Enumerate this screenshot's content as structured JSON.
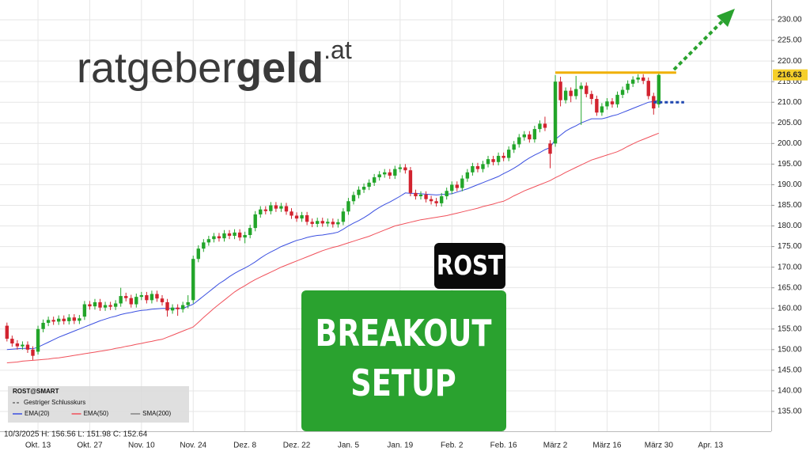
{
  "chart_data": {
    "type": "candlestick",
    "logo": {
      "main": "ratgeber",
      "bold": "geld",
      "suffix": ".at"
    },
    "ticker_badge": "ROST",
    "setup_lines": [
      "BREAKOUT",
      "SETUP"
    ],
    "symbol": "ROST@SMART",
    "legend_extra": [
      "Gestriger Schlusskurs",
      "SMA(200)"
    ],
    "info": "10/3/2025  H: 156.56  L: 151.98  C: 152.64",
    "up_color": "#22a52a",
    "down_color": "#d2232f",
    "categories": [
      null,
      null,
      null,
      null,
      null,
      null,
      "Okt. 13",
      null,
      null,
      null,
      null,
      null,
      null,
      null,
      null,
      null,
      "Okt. 27",
      null,
      null,
      null,
      null,
      null,
      null,
      null,
      null,
      null,
      "Nov. 10",
      null,
      null,
      null,
      null,
      null,
      null,
      null,
      null,
      null,
      "Nov. 24",
      null,
      null,
      null,
      null,
      null,
      null,
      null,
      null,
      null,
      "Dez. 8",
      null,
      null,
      null,
      null,
      null,
      null,
      null,
      null,
      null,
      "Dez. 22",
      null,
      null,
      null,
      null,
      null,
      null,
      null,
      null,
      null,
      "Jan. 5",
      null,
      null,
      null,
      null,
      null,
      null,
      null,
      null,
      null,
      "Jan. 19",
      null,
      null,
      null,
      null,
      null,
      null,
      null,
      null,
      null,
      "Feb. 2",
      null,
      null,
      null,
      null,
      null,
      null,
      null,
      null,
      null,
      "Feb. 16",
      null,
      null,
      null,
      null,
      null,
      null,
      null,
      null,
      null,
      "März 2",
      null,
      null,
      null,
      null,
      null,
      null,
      null,
      null,
      null,
      "März 16",
      null,
      null,
      null,
      null,
      null,
      null,
      null,
      null,
      null,
      "März 30",
      null,
      null,
      null,
      null,
      null,
      null,
      null,
      null,
      null,
      "Apr. 13"
    ],
    "open": [
      155.8,
      152.64,
      151.5,
      150.8,
      151.2,
      150.0,
      149.5,
      155.0,
      156.5,
      157.2,
      156.8,
      157.5,
      156.9,
      157.8,
      157.0,
      158.0,
      161.0,
      160.5,
      161.5,
      160.2,
      160.8,
      160.4,
      161.2,
      163.0,
      162.5,
      161.0,
      162.8,
      163.2,
      162.0,
      163.5,
      162.4,
      161.5,
      159.5,
      160.2,
      159.8,
      160.8,
      162.0,
      172.0,
      174.5,
      176.0,
      176.8,
      177.5,
      177.0,
      178.2,
      177.6,
      178.4,
      177.2,
      177.8,
      179.5,
      182.8,
      184.0,
      183.6,
      185.0,
      184.2,
      184.8,
      183.5,
      182.5,
      181.8,
      182.6,
      181.0,
      180.5,
      181.2,
      180.6,
      181.0,
      180.4,
      181.0,
      183.5,
      186.0,
      187.5,
      188.8,
      189.5,
      190.5,
      191.8,
      192.5,
      193.0,
      192.2,
      193.8,
      194.2,
      193.5,
      188.0,
      187.2,
      187.6,
      186.5,
      186.0,
      185.5,
      187.2,
      188.5,
      190.0,
      189.2,
      191.5,
      193.0,
      194.5,
      193.8,
      195.0,
      196.2,
      195.5,
      197.0,
      196.5,
      198.5,
      199.8,
      201.5,
      202.2,
      201.0,
      203.5,
      204.8,
      200.0,
      200.0,
      215.0,
      210.5,
      212.8,
      211.5,
      213.2,
      214.0,
      212.0,
      210.8,
      207.5,
      209.0,
      210.2,
      209.5,
      211.8,
      213.0,
      214.5,
      215.5,
      216.0,
      215.2,
      211.5,
      209.5,
      null,
      null,
      null,
      null,
      null,
      null,
      null,
      null,
      null,
      null
    ],
    "high": [
      156.56,
      153.4,
      152.3,
      152.0,
      152.0,
      150.8,
      155.8,
      157.3,
      158.0,
      158.0,
      158.3,
      158.3,
      158.6,
      158.6,
      158.4,
      161.8,
      161.8,
      162.3,
      162.3,
      161.6,
      161.6,
      162.0,
      165.0,
      163.8,
      163.3,
      163.6,
      164.0,
      164.0,
      164.3,
      164.3,
      163.2,
      162.3,
      161.0,
      161.0,
      161.6,
      163.2,
      172.8,
      175.3,
      176.8,
      177.6,
      178.3,
      178.3,
      179.0,
      179.0,
      179.2,
      179.2,
      178.6,
      180.3,
      183.6,
      184.8,
      184.8,
      185.8,
      185.8,
      185.6,
      185.6,
      184.3,
      183.3,
      183.4,
      183.4,
      181.8,
      182.0,
      182.0,
      181.8,
      181.8,
      181.7,
      184.3,
      186.8,
      188.3,
      189.6,
      190.3,
      191.3,
      192.6,
      193.3,
      193.8,
      193.8,
      194.6,
      195.0,
      195.0,
      194.3,
      188.8,
      188.4,
      188.4,
      187.3,
      186.8,
      188.0,
      189.3,
      190.8,
      190.8,
      192.3,
      193.8,
      195.3,
      195.3,
      195.8,
      197.0,
      197.0,
      197.8,
      197.8,
      199.3,
      200.6,
      202.3,
      203.0,
      203.0,
      204.3,
      205.6,
      206.5,
      200.8,
      216.6,
      216.2,
      213.6,
      213.6,
      216.4,
      214.8,
      214.8,
      212.8,
      211.6,
      209.8,
      211.0,
      211.0,
      212.6,
      213.8,
      215.3,
      216.3,
      216.8,
      216.8,
      216.0,
      212.3,
      217.0,
      null,
      null,
      null,
      null,
      null,
      null,
      null,
      null,
      null,
      null
    ],
    "low": [
      151.98,
      150.7,
      150.0,
      150.0,
      149.2,
      147.5,
      148.8,
      154.2,
      155.7,
      156.0,
      156.0,
      156.1,
      156.1,
      156.2,
      156.2,
      157.2,
      159.7,
      159.7,
      159.4,
      159.4,
      159.6,
      159.6,
      160.4,
      161.7,
      160.2,
      160.2,
      162.0,
      161.2,
      161.2,
      161.6,
      160.7,
      158.0,
      158.7,
      158.2,
      159.0,
      160.0,
      161.2,
      171.2,
      173.7,
      175.2,
      176.0,
      176.2,
      176.2,
      176.8,
      176.8,
      176.4,
      175.8,
      177.0,
      178.7,
      182.0,
      182.8,
      182.8,
      183.4,
      183.4,
      182.7,
      181.7,
      181.0,
      181.0,
      180.2,
      179.7,
      179.7,
      179.8,
      179.8,
      179.6,
      179.6,
      180.2,
      182.7,
      185.2,
      186.7,
      188.0,
      188.7,
      189.7,
      191.0,
      191.7,
      191.4,
      191.4,
      193.0,
      192.7,
      187.2,
      186.4,
      186.4,
      185.7,
      185.2,
      184.7,
      184.7,
      186.4,
      187.7,
      188.4,
      188.4,
      190.7,
      192.2,
      193.0,
      193.0,
      194.2,
      194.7,
      194.7,
      195.7,
      195.7,
      197.7,
      199.0,
      200.7,
      200.2,
      200.2,
      202.7,
      203.0,
      194.0,
      199.2,
      209.0,
      209.7,
      210.0,
      210.7,
      204.5,
      211.2,
      209.5,
      206.7,
      206.7,
      208.2,
      208.7,
      208.7,
      211.0,
      212.2,
      213.7,
      214.7,
      214.4,
      210.7,
      207.0,
      208.7,
      null,
      null,
      null,
      null,
      null,
      null,
      null,
      null,
      null,
      null
    ],
    "close": [
      152.64,
      151.5,
      150.8,
      151.2,
      150.0,
      148.5,
      155.0,
      156.5,
      157.2,
      156.8,
      157.5,
      156.9,
      157.8,
      157.0,
      157.6,
      161.0,
      160.5,
      161.5,
      160.2,
      160.8,
      160.4,
      161.2,
      163.0,
      162.5,
      161.0,
      162.8,
      163.2,
      162.0,
      163.5,
      162.4,
      161.5,
      159.5,
      160.2,
      159.8,
      160.8,
      161.5,
      172.0,
      174.5,
      176.0,
      176.8,
      177.5,
      177.0,
      178.2,
      177.6,
      178.4,
      177.2,
      177.8,
      179.5,
      182.8,
      184.0,
      183.6,
      185.0,
      184.2,
      184.8,
      183.5,
      182.5,
      181.8,
      182.6,
      181.0,
      180.5,
      181.2,
      180.6,
      181.0,
      180.4,
      180.9,
      183.5,
      186.0,
      187.5,
      188.8,
      189.5,
      190.5,
      191.8,
      192.5,
      193.0,
      192.2,
      193.8,
      194.2,
      193.5,
      188.0,
      187.2,
      187.6,
      186.5,
      186.0,
      185.5,
      187.2,
      188.5,
      190.0,
      189.2,
      191.5,
      193.0,
      194.5,
      193.8,
      195.0,
      196.2,
      195.5,
      197.0,
      196.5,
      198.5,
      199.8,
      201.5,
      202.2,
      201.0,
      203.5,
      204.8,
      203.8,
      197.5,
      215.0,
      210.5,
      212.8,
      211.5,
      213.2,
      214.0,
      212.0,
      210.8,
      207.5,
      209.0,
      210.2,
      209.5,
      211.8,
      213.0,
      214.5,
      215.5,
      216.0,
      215.2,
      211.5,
      208.5,
      216.63,
      null,
      null,
      null,
      null,
      null,
      null,
      null,
      null,
      null,
      null
    ],
    "series": [
      {
        "name": "EMA(20)",
        "color": "#3a4fe0",
        "values": [
          150.0,
          150.1,
          150.2,
          150.3,
          150.3,
          150.2,
          150.6,
          151.2,
          151.8,
          152.4,
          153.0,
          153.5,
          154.0,
          154.5,
          155.0,
          155.5,
          156.0,
          156.5,
          157.0,
          157.4,
          157.8,
          158.1,
          158.5,
          158.8,
          159.0,
          159.3,
          159.5,
          159.6,
          159.8,
          159.9,
          160.0,
          160.0,
          160.0,
          160.0,
          160.0,
          160.5,
          161.0,
          162.0,
          163.0,
          164.0,
          165.0,
          166.0,
          166.8,
          167.7,
          168.5,
          169.2,
          169.8,
          170.5,
          171.3,
          172.2,
          173.0,
          173.7,
          174.3,
          175.0,
          175.5,
          176.0,
          176.5,
          176.8,
          177.2,
          177.5,
          177.7,
          177.8,
          178.0,
          178.2,
          178.5,
          179.2,
          180.0,
          180.7,
          181.3,
          182.0,
          182.8,
          183.7,
          184.5,
          185.2,
          185.8,
          186.5,
          187.2,
          188.0,
          187.9,
          187.9,
          187.8,
          187.7,
          187.6,
          187.5,
          187.6,
          187.7,
          187.8,
          188.2,
          188.6,
          189.0,
          189.5,
          190.0,
          190.5,
          191.0,
          191.5,
          192.0,
          192.7,
          193.3,
          194.0,
          194.8,
          195.7,
          196.5,
          197.2,
          197.8,
          198.5,
          199.0,
          201.0,
          202.0,
          203.0,
          203.7,
          204.3,
          205.0,
          205.5,
          206.0,
          206.0,
          206.0,
          206.3,
          206.7,
          207.0,
          207.5,
          208.0,
          208.5,
          209.0,
          209.5,
          210.0,
          210.2,
          210.5,
          null,
          null,
          null,
          null,
          null,
          null,
          null,
          null,
          null,
          null
        ]
      },
      {
        "name": "EMA(50)",
        "color": "#f0505a",
        "values": [
          146.8,
          146.9,
          147.0,
          147.2,
          147.3,
          147.4,
          147.5,
          147.6,
          147.7,
          147.9,
          148.0,
          148.2,
          148.4,
          148.6,
          148.8,
          149.0,
          149.2,
          149.4,
          149.6,
          149.8,
          150.0,
          150.3,
          150.5,
          150.8,
          151.0,
          151.3,
          151.5,
          151.8,
          152.0,
          152.3,
          152.5,
          153.0,
          153.5,
          154.0,
          154.5,
          155.0,
          155.5,
          156.6,
          157.8,
          158.9,
          160.0,
          161.0,
          162.0,
          163.0,
          164.0,
          164.8,
          165.5,
          166.3,
          167.0,
          167.6,
          168.2,
          168.8,
          169.4,
          170.0,
          170.5,
          171.0,
          171.5,
          172.0,
          172.5,
          173.0,
          173.5,
          174.0,
          174.4,
          174.8,
          175.1,
          175.5,
          175.9,
          176.3,
          176.7,
          177.1,
          177.5,
          178.0,
          178.5,
          179.0,
          179.5,
          180.0,
          180.3,
          180.6,
          180.9,
          181.2,
          181.5,
          181.7,
          181.9,
          182.1,
          182.3,
          182.5,
          182.8,
          183.1,
          183.4,
          183.7,
          184.0,
          184.3,
          184.7,
          185.0,
          185.3,
          185.7,
          186.0,
          186.6,
          187.3,
          187.9,
          188.5,
          189.0,
          189.5,
          190.0,
          190.5,
          191.0,
          191.7,
          192.3,
          193.0,
          193.6,
          194.2,
          194.8,
          195.4,
          196.0,
          196.4,
          196.8,
          197.2,
          197.6,
          198.0,
          198.6,
          199.3,
          199.9,
          200.5,
          201.0,
          201.5,
          202.0,
          202.5,
          null,
          null,
          null,
          null,
          null,
          null,
          null,
          null,
          null,
          null
        ]
      }
    ],
    "resistance": 217.2,
    "support": 210.0,
    "ylim": [
      130.2,
      234.8
    ],
    "yticks": [
      {
        "value": 135,
        "label": "135.00"
      },
      {
        "value": 140,
        "label": "140.00"
      },
      {
        "value": 145,
        "label": "145.00"
      },
      {
        "value": 150,
        "label": "150.00"
      },
      {
        "value": 155,
        "label": "155.00"
      },
      {
        "value": 160,
        "label": "160.00"
      },
      {
        "value": 165,
        "label": "165.00"
      },
      {
        "value": 170,
        "label": "170.00"
      },
      {
        "value": 175,
        "label": "175.00"
      },
      {
        "value": 180,
        "label": "180.00"
      },
      {
        "value": 185,
        "label": "185.00"
      },
      {
        "value": 190,
        "label": "190.00"
      },
      {
        "value": 195,
        "label": "195.00"
      },
      {
        "value": 200,
        "label": "200.00"
      },
      {
        "value": 205,
        "label": "205.00"
      },
      {
        "value": 210,
        "label": "210.00"
      },
      {
        "value": 215,
        "label": "215.00"
      },
      {
        "value": 220,
        "label": "220.00"
      },
      {
        "value": 225,
        "label": "225.00"
      },
      {
        "value": 230,
        "label": "230.00"
      }
    ],
    "grid": true
  }
}
